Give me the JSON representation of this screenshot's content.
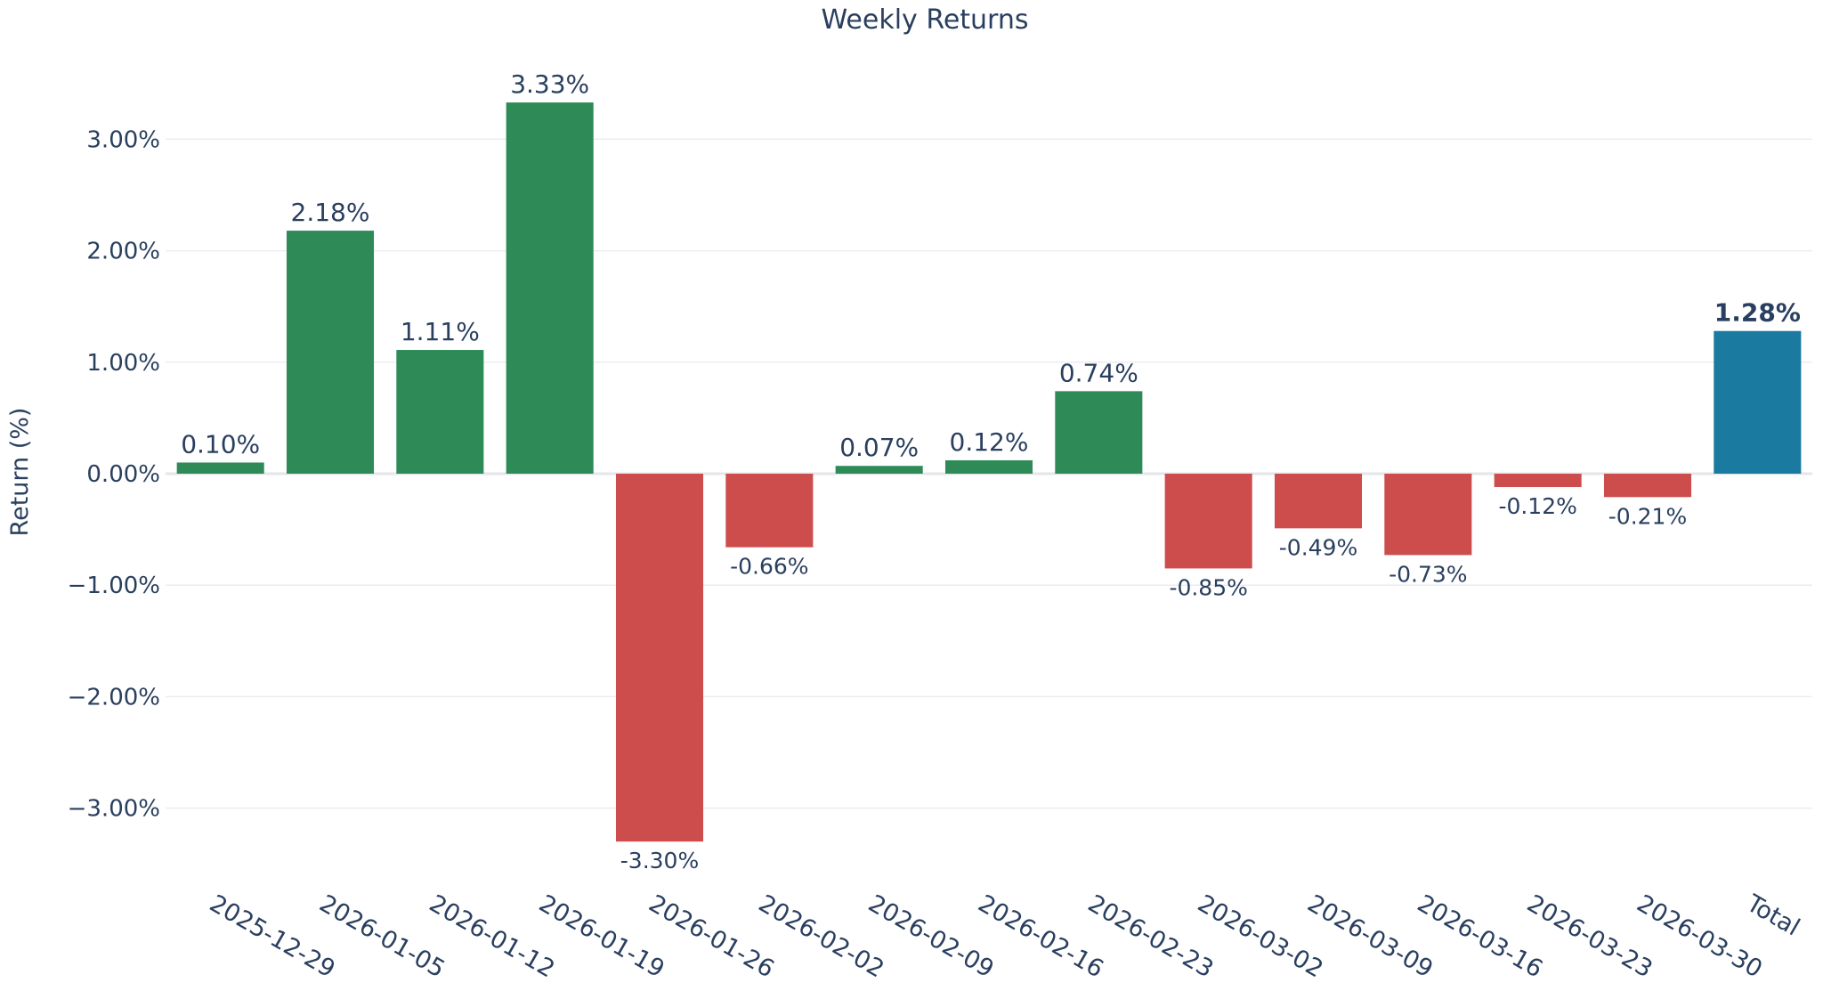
{
  "chart_data": {
    "type": "bar",
    "title": "Weekly Returns",
    "xlabel": "",
    "ylabel": "Return (%)",
    "ylim": [
      -3.5,
      3.6
    ],
    "yticks": [
      3,
      2,
      1,
      0,
      -1,
      -2,
      -3
    ],
    "ytick_labels": [
      "3.00%",
      "2.00%",
      "1.00%",
      "0.00%",
      "−1.00%",
      "−2.00%",
      "−3.00%"
    ],
    "grid": true,
    "legend": "none",
    "categories": [
      "2025-12-29",
      "2026-01-05",
      "2026-01-12",
      "2026-01-19",
      "2026-01-26",
      "2026-02-02",
      "2026-02-09",
      "2026-02-16",
      "2026-02-23",
      "2026-03-02",
      "2026-03-09",
      "2026-03-16",
      "2026-03-23",
      "2026-03-30",
      "Total"
    ],
    "values": [
      0.1,
      2.18,
      1.11,
      3.33,
      -3.3,
      -0.66,
      0.07,
      0.12,
      0.74,
      -0.85,
      -0.49,
      -0.73,
      -0.12,
      -0.21,
      1.28
    ],
    "data_labels": [
      "0.10%",
      "2.18%",
      "1.11%",
      "3.33%",
      "-3.30%",
      "-0.66%",
      "0.07%",
      "0.12%",
      "0.74%",
      "-0.85%",
      "-0.49%",
      "-0.73%",
      "-0.12%",
      "-0.21%",
      "1.28%"
    ],
    "colors": {
      "positive": "#2e8b57",
      "negative": "#cd4c4c",
      "total": "#1a7aa0",
      "text": "#2a3f5f",
      "grid": "#ebedf0",
      "zeroline": "#e3e6ea"
    }
  }
}
